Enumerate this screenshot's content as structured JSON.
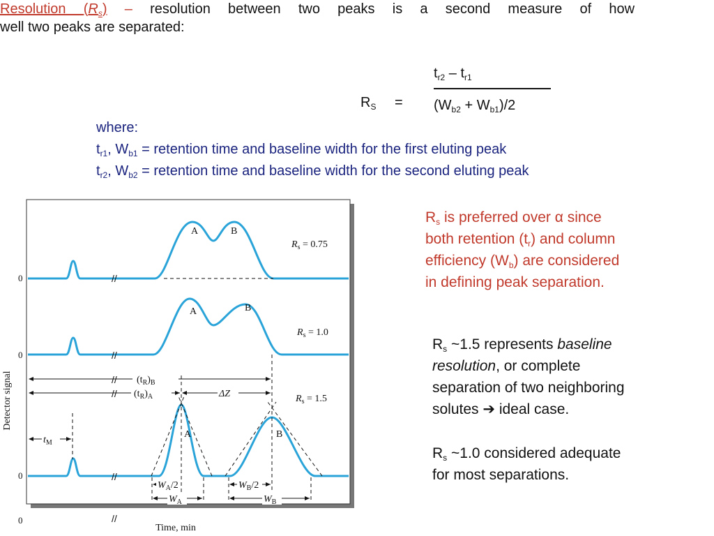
{
  "intro": {
    "term": "Resolution",
    "symbol_open": "(",
    "symbol": "R",
    "symbol_sub": "s",
    "symbol_close": ")",
    "dash": "–",
    "line1_rest": "resolution between two peaks is a second measure of how",
    "line2": "well two peaks are separated:"
  },
  "formula": {
    "lhs": "R",
    "lhs_sub": "S",
    "equals": "=",
    "num_t1": "t",
    "num_t1_sub": "r2",
    "num_minus": " – t",
    "num_t2_sub": "r1",
    "den_open": "(W",
    "den_sub1": "b2",
    "den_plus": " + W",
    "den_sub2": "b1",
    "den_close": ")/2"
  },
  "where": {
    "label": "where:",
    "line1_a": "t",
    "line1_a_sub": "r1",
    "line1_b": ", W",
    "line1_b_sub": "b1",
    "line1_rest": " = retention time and baseline width for the first eluting peak",
    "line2_a": "t",
    "line2_a_sub": "r2",
    "line2_b": ", W",
    "line2_b_sub": "b2",
    "line2_rest": " = retention time and baseline width for the second eluting peak"
  },
  "note1": {
    "r": "R",
    "r_sub": "s",
    "line1_rest": " is preferred over α since",
    "line2_a": "both retention (t",
    "line2_sub": "r",
    "line2_b": ") and column",
    "line3_a": "efficiency (W",
    "line3_sub": "b",
    "line3_b": ") are considered",
    "line4": "in defining peak separation."
  },
  "note2": {
    "r": "R",
    "r_sub": "s",
    "line1_a": " ~1.5 represents ",
    "line1_i": "baseline",
    "line2_i": "resolution",
    "line2_rest": ", or complete",
    "line3": "separation of two neighboring",
    "line4_a": "solutes ",
    "arrow": "➔",
    "line4_b": " ideal case."
  },
  "note3": {
    "r": "R",
    "r_sub": "s",
    "line1_rest": " ~1.0 considered adequate",
    "line2": "for most separations."
  },
  "figure": {
    "ylabel": "Detector signal",
    "xlabel": "Time, min",
    "zero": "0",
    "break_mark": "//",
    "peak_a": "A",
    "peak_b": "B",
    "rs1": "R",
    "rs1_sub": "s",
    "rs1_val": " = 0.75",
    "rs2_val": " = 1.0",
    "rs3_val": " = 1.5",
    "tR_open": "(t",
    "tR_sub": "R",
    "tR_close_B": ")",
    "tR_B": "B",
    "tR_close_A": ")",
    "tR_A": "A",
    "delta_z": "ΔZ",
    "tM": "t",
    "tM_sub": "M",
    "WA_half": "W",
    "WA_sub": "A",
    "WA_half_tail": "/2",
    "WB_half": "W",
    "WB_sub": "B",
    "WB_half_tail": "/2",
    "WA": "W",
    "WA_sub2": "A",
    "WB": "W",
    "WB_sub2": "B",
    "colors": {
      "curve": "#29a3d8",
      "frame": "#333333",
      "shadow": "#666666"
    }
  },
  "colors": {
    "orange": "#c0392b",
    "navy": "#1a237e"
  }
}
